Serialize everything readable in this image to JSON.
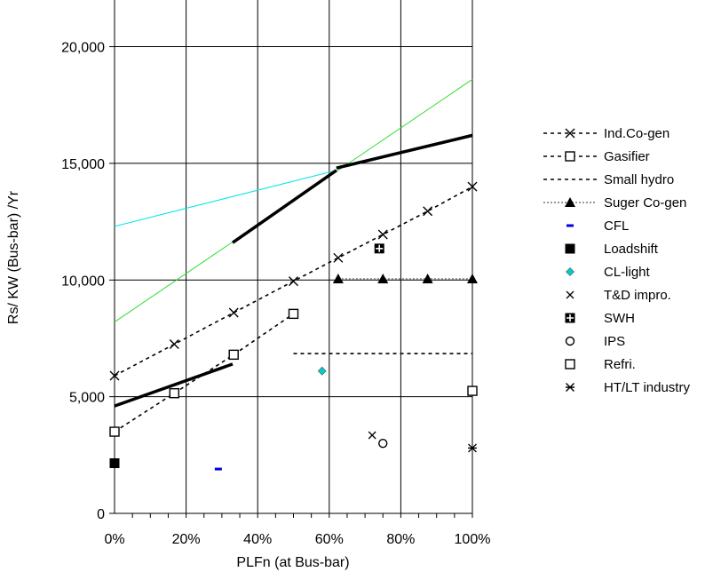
{
  "chart_data": {
    "type": "scatter",
    "title": "",
    "xlabel": "PLFn (at Bus-bar)",
    "ylabel": "Rs/ KW (Bus-bar) /Yr",
    "xlim": [
      0,
      1
    ],
    "ylim": [
      0,
      22000
    ],
    "x_ticks": [
      {
        "v": 0,
        "label": "0%"
      },
      {
        "v": 0.2,
        "label": "20%"
      },
      {
        "v": 0.4,
        "label": "40%"
      },
      {
        "v": 0.6,
        "label": "60%"
      },
      {
        "v": 0.8,
        "label": "80%"
      },
      {
        "v": 1.0,
        "label": "100%"
      }
    ],
    "y_ticks": [
      {
        "v": 0,
        "label": "0"
      },
      {
        "v": 5000,
        "label": "5,000"
      },
      {
        "v": 10000,
        "label": "10,000"
      },
      {
        "v": 15000,
        "label": "15,000"
      },
      {
        "v": 20000,
        "label": "20,000"
      }
    ],
    "grid": true,
    "legend_position": "right",
    "lines": [
      {
        "color": "#00e5e5",
        "points": [
          [
            0,
            12300
          ],
          [
            0.62,
            14700
          ]
        ]
      },
      {
        "color": "#33dd33",
        "points": [
          [
            0,
            8200
          ],
          [
            1.0,
            18600
          ]
        ]
      },
      {
        "color": "#000000",
        "width": 3.5,
        "points": [
          [
            0,
            4600
          ],
          [
            0.33,
            6400
          ]
        ]
      },
      {
        "color": "#000000",
        "width": 3.5,
        "points": [
          [
            0.33,
            11600
          ],
          [
            0.62,
            14700
          ]
        ]
      },
      {
        "color": "#000000",
        "width": 3.5,
        "points": [
          [
            0.62,
            14800
          ],
          [
            1.0,
            16200
          ]
        ]
      }
    ],
    "series": [
      {
        "name": "Ind.Co-gen",
        "marker": "x",
        "line": "dotted",
        "color": "#000000",
        "points": [
          [
            0,
            5900
          ],
          [
            0.167,
            7250
          ],
          [
            0.333,
            8600
          ],
          [
            0.5,
            9950
          ],
          [
            0.625,
            10950
          ],
          [
            0.75,
            11950
          ],
          [
            0.875,
            12950
          ],
          [
            1.0,
            14000
          ]
        ]
      },
      {
        "name": "Gasifier",
        "marker": "square-open",
        "line": "dotted",
        "color": "#000000",
        "points": [
          [
            0,
            3500
          ],
          [
            0.167,
            5150
          ],
          [
            0.333,
            6800
          ],
          [
            0.5,
            8550
          ]
        ]
      },
      {
        "name": "Small hydro",
        "marker": "none",
        "line": "dotted",
        "color": "#000000",
        "points": [
          [
            0.5,
            6850
          ],
          [
            1.0,
            6850
          ]
        ]
      },
      {
        "name": "Suger Co-gen",
        "marker": "triangle",
        "line": "dotted-gray",
        "color": "#000000",
        "points": [
          [
            0.625,
            10050
          ],
          [
            0.75,
            10050
          ],
          [
            0.875,
            10050
          ],
          [
            1.0,
            10050
          ]
        ]
      },
      {
        "name": "CFL",
        "marker": "dash",
        "line": "none",
        "color": "#0000dd",
        "points": [
          [
            0.29,
            1900
          ]
        ]
      },
      {
        "name": "Loadshift",
        "marker": "square-filled",
        "line": "none",
        "color": "#000000",
        "points": [
          [
            0,
            2150
          ]
        ]
      },
      {
        "name": "CL-light",
        "marker": "diamond",
        "line": "none",
        "color": "#00cccc",
        "points": [
          [
            0.58,
            6100
          ]
        ]
      },
      {
        "name": "T&D impro.",
        "marker": "x-small",
        "line": "none",
        "color": "#000000",
        "points": [
          [
            0.72,
            3350
          ]
        ]
      },
      {
        "name": "SWH",
        "marker": "square-plus",
        "line": "none",
        "color": "#000000",
        "points": [
          [
            0.74,
            11350
          ]
        ]
      },
      {
        "name": "IPS",
        "marker": "circle-open",
        "line": "none",
        "color": "#000000",
        "points": [
          [
            0.75,
            3000
          ]
        ]
      },
      {
        "name": "Refri.",
        "marker": "square-open",
        "line": "none",
        "color": "#000000",
        "points": [
          [
            1.0,
            5250
          ]
        ]
      },
      {
        "name": "HT/LT industry",
        "marker": "asterisk",
        "line": "none",
        "color": "#000000",
        "points": [
          [
            1.0,
            2800
          ]
        ]
      }
    ]
  }
}
